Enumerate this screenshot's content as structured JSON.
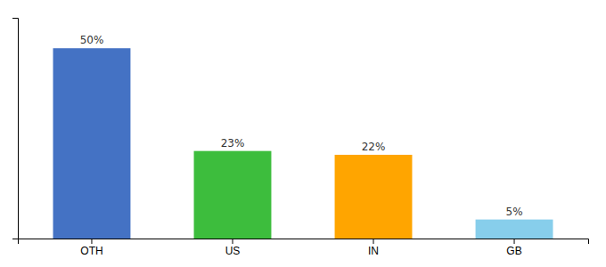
{
  "chart_data": {
    "type": "bar",
    "categories": [
      "OTH",
      "US",
      "IN",
      "GB"
    ],
    "values": [
      50,
      23,
      22,
      5
    ],
    "value_labels": [
      "50%",
      "23%",
      "22%",
      "5%"
    ],
    "colors": [
      "#4472C4",
      "#3DBD3D",
      "#FFA500",
      "#87CEEB"
    ],
    "ylim": [
      0,
      58
    ],
    "data_labels": true,
    "tick_labels": "x",
    "grid": false
  }
}
